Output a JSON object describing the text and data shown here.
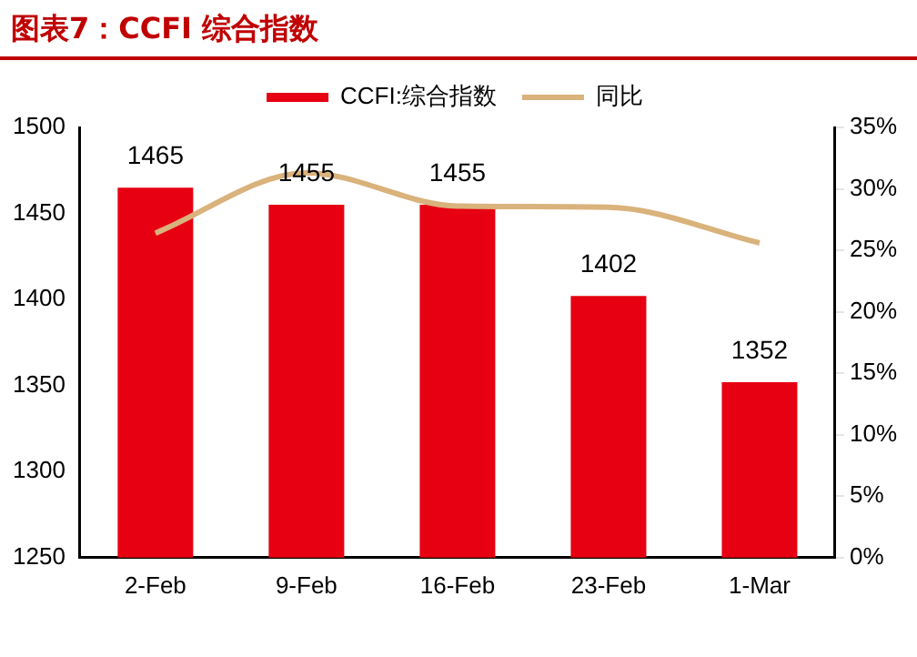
{
  "chart_data": {
    "type": "bar",
    "title": "图表7：CCFI 综合指数",
    "categories": [
      "2-Feb",
      "9-Feb",
      "16-Feb",
      "23-Feb",
      "1-Mar"
    ],
    "series": [
      {
        "name": "CCFI:综合指数",
        "color": "#e60012",
        "values": [
          1465,
          1455,
          1455,
          1402,
          1352
        ],
        "value_labels": [
          "1465",
          "1455",
          "1455",
          "1402",
          "1352"
        ]
      },
      {
        "name": "同比",
        "type": "line",
        "axis": "y2",
        "color": "#d9b27c",
        "values": [
          26.4,
          31.3,
          28.6,
          28.5,
          25.6
        ]
      }
    ],
    "legend": "top",
    "grid": false,
    "marker": "none",
    "ylim": [
      1250,
      1500
    ],
    "yticks": [
      1250,
      1300,
      1350,
      1400,
      1450,
      1500
    ],
    "y2lim": [
      0,
      35
    ],
    "y2ticks": [
      {
        "value": 0,
        "label": "0%"
      },
      {
        "value": 5,
        "label": "5%"
      },
      {
        "value": 10,
        "label": "10%"
      },
      {
        "value": 15,
        "label": "15%"
      },
      {
        "value": 20,
        "label": "20%"
      },
      {
        "value": 25,
        "label": "25%"
      },
      {
        "value": 30,
        "label": "30%"
      },
      {
        "value": 35,
        "label": "35%"
      }
    ]
  }
}
